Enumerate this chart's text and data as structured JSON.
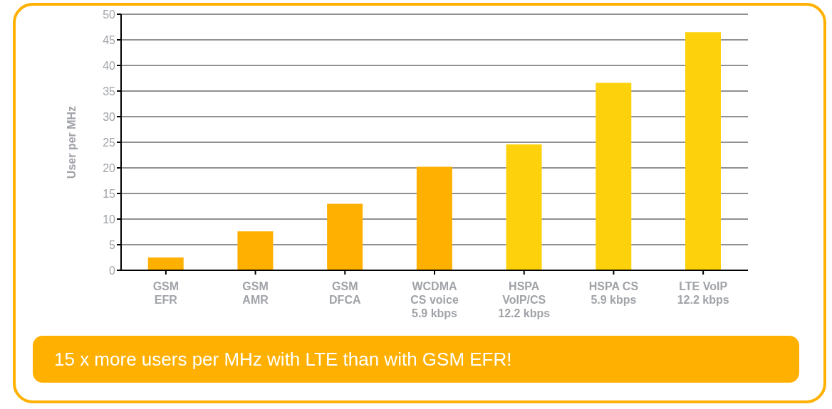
{
  "chart_data": {
    "type": "bar",
    "ylabel": "User per MHz",
    "categories": [
      "GSM\nEFR",
      "GSM\nAMR",
      "GSM\nDFCA",
      "WCDMA\nCS voice\n5.9 kbps",
      "HSPA\nVoIP/CS\n12.2 kbps",
      "HSPA CS\n5.9 kbps",
      "LTE VoIP\n12.2 kbps"
    ],
    "values": [
      2.5,
      7.6,
      13,
      20.2,
      24.6,
      36.6,
      46.5
    ],
    "colors": [
      "#ffb000",
      "#ffb000",
      "#ffb000",
      "#ffb000",
      "#fdd20c",
      "#fdd20c",
      "#fdd20c"
    ],
    "ylim": [
      0,
      50
    ],
    "yticks": [
      0,
      5,
      10,
      15,
      20,
      25,
      30,
      35,
      40,
      45,
      50
    ],
    "grid": "y",
    "annotations": [
      "15 x more users per MHz with LTE than with GSM EFR!"
    ]
  }
}
